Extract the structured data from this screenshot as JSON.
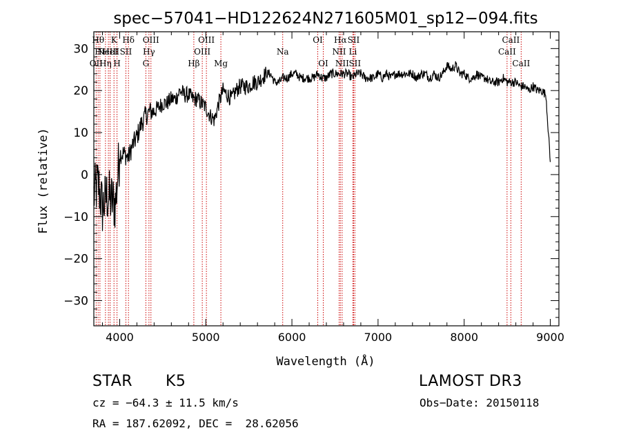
{
  "chart_data": {
    "type": "line",
    "title": "spec−57041−HD122624N271605M01_sp12−094.fits",
    "xlabel": "Wavelength (Å)",
    "ylabel": "Flux (relative)",
    "xlim": [
      3700,
      9100
    ],
    "ylim": [
      -36,
      34
    ],
    "x_ticks": [
      4000,
      5000,
      6000,
      7000,
      8000,
      9000
    ],
    "x_tick_labels": [
      "4000",
      "5000",
      "6000",
      "7000",
      "8000",
      "9000"
    ],
    "y_ticks": [
      -30,
      -20,
      -10,
      0,
      10,
      20,
      30
    ],
    "y_tick_labels": [
      "−30",
      "−20",
      "−10",
      "0",
      "10",
      "20",
      "30"
    ],
    "grid": false,
    "series": [
      {
        "x": [
          3700,
          3750,
          3800,
          3850,
          3900,
          3950,
          4000,
          4050,
          4100,
          4150,
          4200,
          4250,
          4300,
          4350,
          4400,
          4450,
          4500,
          4550,
          4600,
          4650,
          4700,
          4750,
          4800,
          4850,
          4900,
          4950,
          5000,
          5050,
          5100,
          5150,
          5200,
          5250,
          5300,
          5350,
          5400,
          5450,
          5500,
          5550,
          5600,
          5650,
          5700,
          5750,
          5800,
          5850,
          5900,
          5950,
          6000,
          6050,
          6100,
          6150,
          6200,
          6250,
          6300,
          6350,
          6400,
          6450,
          6500,
          6550,
          6600,
          6650,
          6700,
          6750,
          6800,
          6850,
          6900,
          6950,
          7000,
          7050,
          7100,
          7150,
          7200,
          7250,
          7300,
          7350,
          7400,
          7450,
          7500,
          7550,
          7600,
          7650,
          7700,
          7750,
          7800,
          7850,
          7900,
          7950,
          8000,
          8050,
          8100,
          8150,
          8200,
          8250,
          8300,
          8350,
          8400,
          8450,
          8500,
          8550,
          8600,
          8650,
          8700,
          8750,
          8800,
          8850,
          8900,
          8950,
          9000
        ],
        "y": [
          -5,
          -2,
          -8,
          -5,
          -6,
          -7,
          5,
          5,
          4,
          7,
          9,
          12,
          14,
          15,
          15,
          16,
          17,
          17,
          18,
          18,
          20,
          19,
          19,
          18,
          18,
          17,
          16,
          14,
          13,
          17,
          20,
          19,
          18,
          20,
          21,
          21,
          21,
          22,
          22,
          23,
          24,
          24,
          22,
          22,
          23,
          23,
          24,
          24,
          23,
          23,
          23,
          23,
          24,
          23,
          23,
          24,
          24,
          24,
          24,
          24,
          23,
          24,
          24,
          23,
          23,
          23,
          24,
          23,
          24,
          23,
          24,
          24,
          24,
          24,
          24,
          23,
          24,
          24,
          23,
          24,
          23,
          24,
          26,
          25,
          26,
          24,
          24,
          23,
          23,
          24,
          23,
          23,
          22,
          22,
          22,
          23,
          22,
          22,
          22,
          21,
          21,
          20,
          21,
          20,
          20,
          19,
          3
        ]
      }
    ],
    "line_labels": [
      {
        "wavelength": 3727,
        "text": "OII",
        "row": 3
      },
      {
        "wavelength": 3750,
        "text": "Hθ",
        "row": 1
      },
      {
        "wavelength": 3771,
        "text": "Hι",
        "row": 2
      },
      {
        "wavelength": 3835,
        "text": "Hη",
        "row": 3
      },
      {
        "wavelength": 3869,
        "text": "NeIII",
        "row": 2
      },
      {
        "wavelength": 3889,
        "text": "HeI",
        "row": 2
      },
      {
        "wavelength": 3934,
        "text": "K",
        "row": 1
      },
      {
        "wavelength": 3969,
        "text": "H",
        "row": 3
      },
      {
        "wavelength": 4072,
        "text": "SII",
        "row": 2
      },
      {
        "wavelength": 4102,
        "text": "Hδ",
        "row": 1
      },
      {
        "wavelength": 4304,
        "text": "G",
        "row": 3
      },
      {
        "wavelength": 4340,
        "text": "Hγ",
        "row": 2
      },
      {
        "wavelength": 4363,
        "text": "OIII",
        "row": 1
      },
      {
        "wavelength": 4861,
        "text": "Hβ",
        "row": 3
      },
      {
        "wavelength": 4959,
        "text": "OIII",
        "row": 2
      },
      {
        "wavelength": 5007,
        "text": "OIII",
        "row": 1
      },
      {
        "wavelength": 5175,
        "text": "Mg",
        "row": 3
      },
      {
        "wavelength": 5893,
        "text": "Na",
        "row": 2
      },
      {
        "wavelength": 6300,
        "text": "OI",
        "row": 1
      },
      {
        "wavelength": 6364,
        "text": "OI",
        "row": 3
      },
      {
        "wavelength": 6548,
        "text": "NII",
        "row": 2
      },
      {
        "wavelength": 6563,
        "text": "Hα",
        "row": 1
      },
      {
        "wavelength": 6583,
        "text": "NII",
        "row": 3
      },
      {
        "wavelength": 6708,
        "text": "Li",
        "row": 2
      },
      {
        "wavelength": 6716,
        "text": "SII",
        "row": 1
      },
      {
        "wavelength": 6731,
        "text": "SII",
        "row": 3
      },
      {
        "wavelength": 8498,
        "text": "CaII",
        "row": 2
      },
      {
        "wavelength": 8542,
        "text": "CaII",
        "row": 1
      },
      {
        "wavelength": 8662,
        "text": "CaII",
        "row": 3
      }
    ],
    "colors": {
      "spectrum": "#000000",
      "line_markers": "#cc0000",
      "axes": "#000000"
    }
  },
  "info": {
    "class": "STAR",
    "subclass": "K5",
    "survey": "LAMOST DR3",
    "cz": "cz = −64.3 ± 11.5 km/s",
    "obs_date": "Obs−Date: 20150118",
    "coords": "RA = 187.62092, DEC =  28.62056"
  }
}
